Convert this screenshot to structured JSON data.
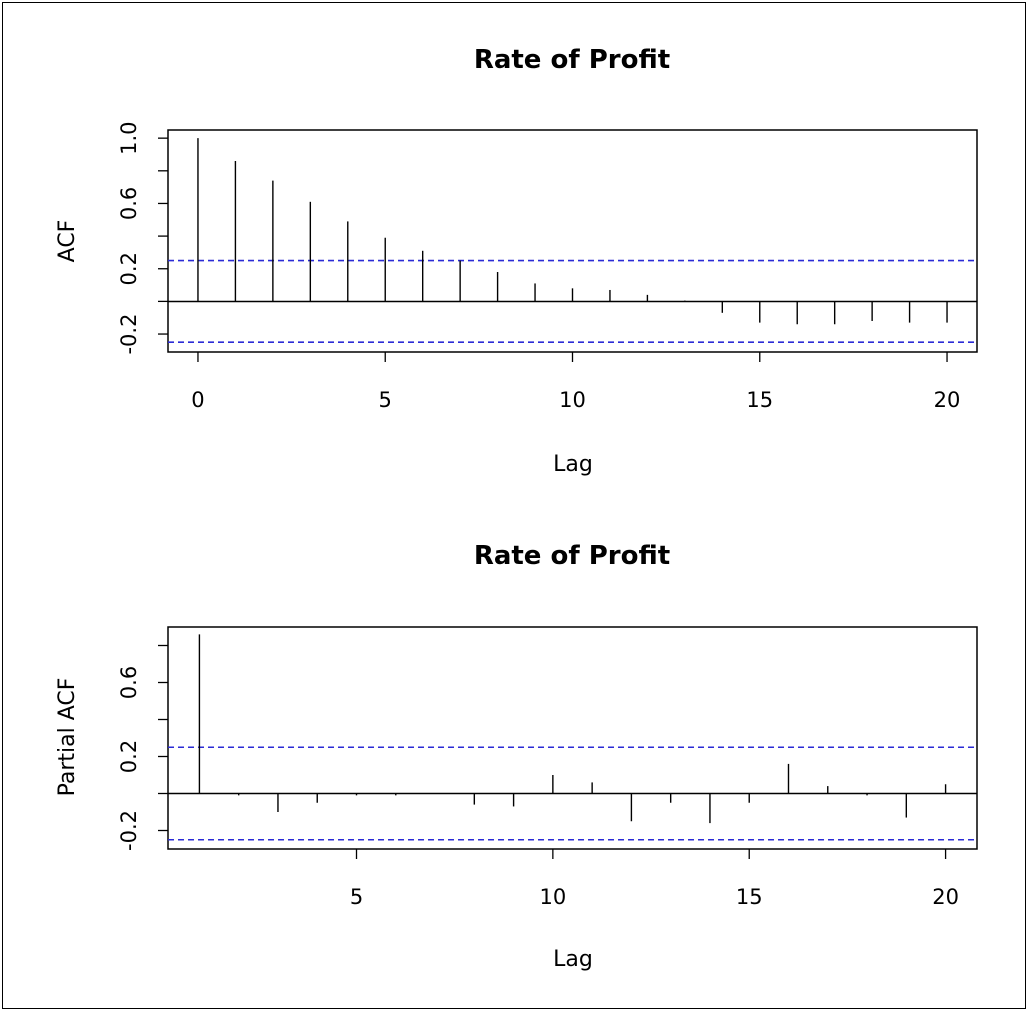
{
  "chart_data": [
    {
      "type": "bar",
      "title": "Rate of Profit",
      "xlabel": "Lag",
      "ylabel": "ACF",
      "x": [
        0,
        1,
        2,
        3,
        4,
        5,
        6,
        7,
        8,
        9,
        10,
        11,
        12,
        13,
        14,
        15,
        16,
        17,
        18,
        19,
        20
      ],
      "values": [
        1.0,
        0.86,
        0.74,
        0.61,
        0.49,
        0.39,
        0.31,
        0.25,
        0.18,
        0.11,
        0.08,
        0.07,
        0.04,
        0.005,
        -0.07,
        -0.13,
        -0.14,
        -0.14,
        -0.12,
        -0.13,
        -0.13
      ],
      "confidence_bounds": [
        0.25,
        -0.25
      ],
      "xlim": [
        -0.8,
        20.8
      ],
      "ylim": [
        -0.31,
        1.05
      ],
      "xticks": [
        "0",
        "5",
        "10",
        "15",
        "20"
      ],
      "yticks": [
        "-0.2",
        "0.2",
        "0.6",
        "1.0"
      ],
      "grid": false
    },
    {
      "type": "bar",
      "title": "Rate of Profit",
      "xlabel": "Lag",
      "ylabel": "Partial ACF",
      "x": [
        1,
        2,
        3,
        4,
        5,
        6,
        7,
        8,
        9,
        10,
        11,
        12,
        13,
        14,
        15,
        16,
        17,
        18,
        19,
        20
      ],
      "values": [
        0.86,
        -0.01,
        -0.1,
        -0.05,
        -0.01,
        -0.01,
        0.0,
        -0.06,
        -0.07,
        0.1,
        0.06,
        -0.15,
        -0.05,
        -0.16,
        -0.05,
        0.16,
        0.04,
        -0.01,
        -0.13,
        0.05
      ],
      "confidence_bounds": [
        0.25,
        -0.25
      ],
      "xlim": [
        0.2,
        20.8
      ],
      "ylim": [
        -0.3,
        0.9
      ],
      "xticks": [
        "5",
        "10",
        "15",
        "20"
      ],
      "yticks": [
        "-0.2",
        "0.2",
        "0.6"
      ],
      "grid": false
    }
  ]
}
